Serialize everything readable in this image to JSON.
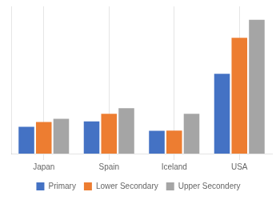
{
  "chart_data": {
    "type": "bar",
    "categories": [
      "Japan",
      "Spain",
      "Iceland",
      "USA"
    ],
    "series": [
      {
        "name": "Primary",
        "color": "#4472C4",
        "values": [
          700,
          740,
          671,
          1097
        ]
      },
      {
        "name": "Lower Secondary",
        "color": "#ED7D31",
        "values": [
          736,
          798,
          672,
          1366
        ]
      },
      {
        "name": "Upper Secondery",
        "color": "#A5A5A5",
        "values": [
          760,
          840,
          798,
          1500
        ]
      }
    ],
    "ylim": [
      500,
      1600
    ],
    "yticks": [],
    "grid": true,
    "legend": "bottom",
    "tick_labels": "x"
  }
}
